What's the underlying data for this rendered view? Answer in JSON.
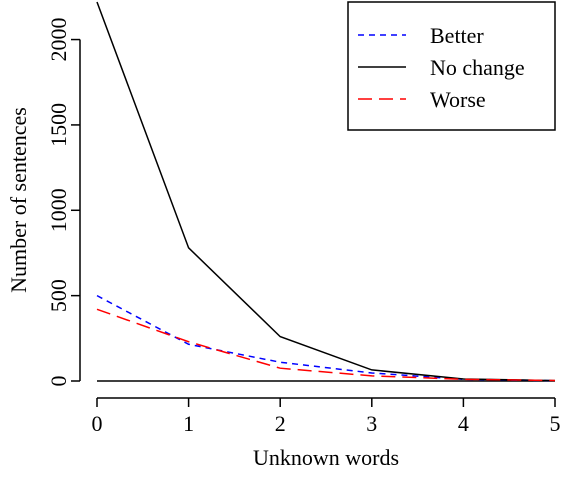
{
  "chart_data": {
    "type": "line",
    "x_label": "Unknown words",
    "y_label": "Number of sentences",
    "x": [
      0,
      1,
      2,
      3,
      4,
      5
    ],
    "series": [
      {
        "name": "Better",
        "color": "#0000ff",
        "dash": "dashed",
        "values": [
          500,
          215,
          110,
          47,
          10,
          2
        ]
      },
      {
        "name": "No change",
        "color": "#000000",
        "dash": "solid",
        "values": [
          2220,
          780,
          260,
          65,
          12,
          2
        ]
      },
      {
        "name": "Worse",
        "color": "#ff0000",
        "dash": "longdash",
        "values": [
          420,
          230,
          75,
          30,
          10,
          3
        ]
      }
    ],
    "xlim": [
      0,
      5
    ],
    "ylim": [
      0,
      2220
    ],
    "xticks": [
      0,
      1,
      2,
      3,
      4,
      5
    ],
    "yticks": [
      0,
      500,
      1000,
      1500,
      2000
    ],
    "legend": "top-right"
  }
}
